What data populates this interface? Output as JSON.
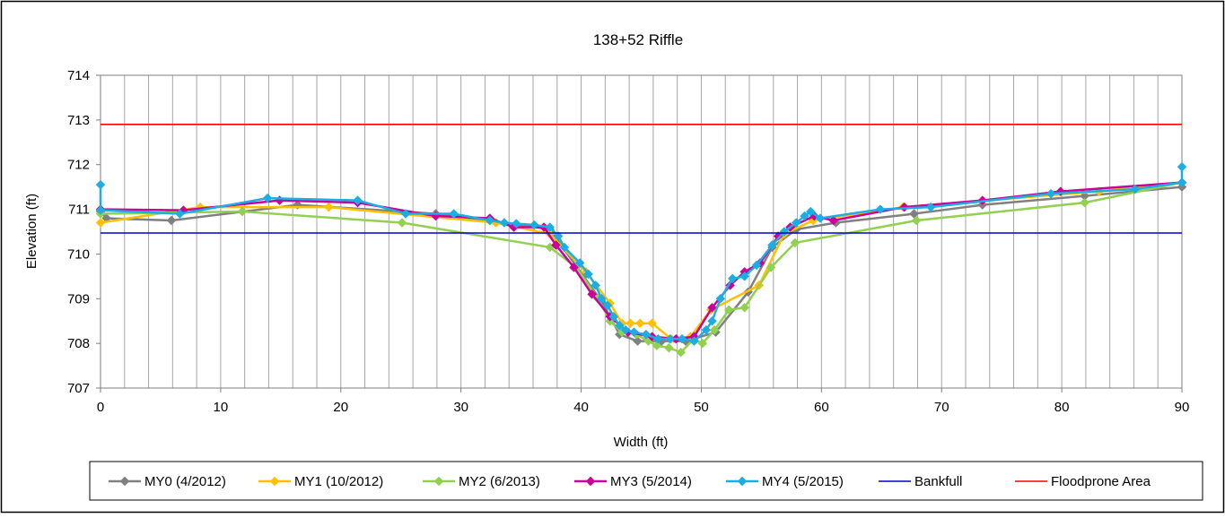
{
  "chart_data": {
    "type": "line",
    "title": "138+52 Riffle",
    "xlabel": "Width (ft)",
    "ylabel": "Elevation (ft)",
    "xlim": [
      0,
      90
    ],
    "ylim": [
      707,
      714
    ],
    "x_major_ticks": [
      0,
      10,
      20,
      30,
      40,
      50,
      60,
      70,
      80,
      90
    ],
    "x_minor_step": 2,
    "y_ticks": [
      707,
      708,
      709,
      710,
      711,
      712,
      713,
      714
    ],
    "grid": "vertical",
    "legend_position": "bottom",
    "series": [
      {
        "name": "MY0 (4/2012)",
        "color": "#808080",
        "marker": "diamond",
        "x": [
          0,
          0.5,
          5.9,
          16.4,
          27.9,
          32.4,
          37.4,
          40.2,
          41.8,
          43.2,
          44.7,
          46.7,
          48.7,
          51.2,
          53.9,
          55.9,
          57.9,
          61.2,
          67.7,
          73.4,
          81.9,
          90
        ],
        "y": [
          710.95,
          710.8,
          710.75,
          711.1,
          710.9,
          710.75,
          710.55,
          709.5,
          708.9,
          708.2,
          708.05,
          708.05,
          708.05,
          708.25,
          709.15,
          710.15,
          710.55,
          710.7,
          710.9,
          711.1,
          711.3,
          711.5
        ]
      },
      {
        "name": "MY1 (10/2012)",
        "color": "#FFC000",
        "marker": "diamond",
        "x": [
          0,
          8.3,
          19.0,
          32.9,
          37.4,
          40.4,
          42.4,
          43.4,
          44.1,
          44.9,
          45.9,
          47.5,
          49.1,
          50.8,
          54.8,
          56.9,
          59.3,
          66.8,
          83.1,
          90
        ],
        "y": [
          710.7,
          711.05,
          711.05,
          710.7,
          710.45,
          709.6,
          708.9,
          708.45,
          708.45,
          708.45,
          708.45,
          708.1,
          708.15,
          708.75,
          709.3,
          710.45,
          710.75,
          711.05,
          711.4,
          711.6
        ]
      },
      {
        "name": "MY2 (6/2013)",
        "color": "#92D050",
        "marker": "diamond",
        "x": [
          0,
          11.8,
          25.1,
          37.4,
          39.6,
          41.4,
          42.4,
          43.4,
          44.6,
          45.6,
          46.3,
          47.3,
          48.3,
          49.4,
          50.1,
          51.1,
          52.3,
          53.6,
          55.8,
          57.8,
          67.9,
          81.9,
          90
        ],
        "y": [
          710.9,
          710.95,
          710.7,
          710.15,
          709.7,
          709.0,
          708.5,
          708.25,
          708.2,
          708.05,
          707.95,
          707.9,
          707.8,
          708.1,
          708.0,
          708.3,
          708.75,
          708.8,
          709.7,
          710.25,
          710.75,
          711.15,
          711.6
        ]
      },
      {
        "name": "MY3 (5/2014)",
        "color": "#CC0099",
        "marker": "diamond",
        "x": [
          0,
          6.9,
          14.9,
          21.4,
          27.9,
          32.4,
          34.4,
          36.9,
          37.9,
          39.4,
          40.9,
          42.4,
          43.9,
          45.9,
          47.9,
          49.4,
          50.9,
          52.4,
          53.6,
          54.9,
          56.4,
          57.4,
          59.4,
          61.0,
          66.9,
          73.4,
          79.9,
          90
        ],
        "y": [
          711.0,
          710.98,
          711.2,
          711.15,
          710.85,
          710.8,
          710.6,
          710.6,
          710.2,
          709.7,
          709.1,
          708.6,
          708.25,
          708.15,
          708.1,
          708.15,
          708.8,
          709.3,
          709.6,
          709.8,
          710.4,
          710.6,
          710.85,
          710.75,
          711.05,
          711.2,
          711.4,
          711.6
        ]
      },
      {
        "name": "MY4 (5/2015)",
        "color": "#1CADE4",
        "marker": "diamond",
        "x": [
          0,
          0,
          6.6,
          13.9,
          21.4,
          25.4,
          29.4,
          32.4,
          33.6,
          34.6,
          36.1,
          37.4,
          38.1,
          38.6,
          39.9,
          40.6,
          41.2,
          41.7,
          42.2,
          42.7,
          43.2,
          43.7,
          44.4,
          45.4,
          46.4,
          47.4,
          48.4,
          49.4,
          50.4,
          50.9,
          51.6,
          52.6,
          53.6,
          54.6,
          55.9,
          56.9,
          57.9,
          58.6,
          59.1,
          59.9,
          64.9,
          69.1,
          79.1,
          86.1,
          90,
          90
        ],
        "y": [
          711.55,
          710.98,
          710.9,
          711.25,
          711.2,
          710.9,
          710.9,
          710.75,
          710.7,
          710.68,
          710.65,
          710.6,
          710.4,
          710.15,
          709.8,
          709.55,
          709.3,
          709.0,
          708.85,
          708.6,
          708.4,
          708.3,
          708.25,
          708.2,
          708.1,
          708.1,
          708.1,
          708.05,
          708.3,
          708.5,
          709.0,
          709.45,
          709.5,
          709.75,
          710.2,
          710.5,
          710.7,
          710.85,
          710.95,
          710.8,
          711.0,
          711.05,
          711.35,
          711.45,
          711.6,
          711.95
        ]
      },
      {
        "name": "Bankfull",
        "color": "#0000CC",
        "marker": "none",
        "x": [
          0,
          90
        ],
        "y": [
          710.47,
          710.47
        ]
      },
      {
        "name": "Floodprone Area",
        "color": "#FF0000",
        "marker": "none",
        "x": [
          0,
          90
        ],
        "y": [
          712.9,
          712.9
        ]
      }
    ]
  }
}
